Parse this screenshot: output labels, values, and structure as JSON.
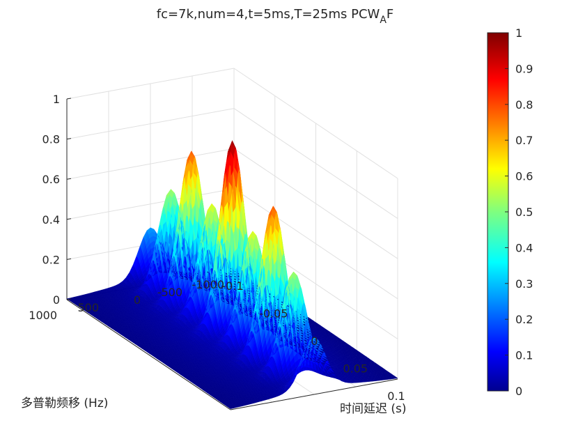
{
  "chart_data": {
    "type": "surface3d",
    "title": {
      "main": "fc=7k,num=4,t=5ms,T=25ms PCW",
      "subscript": "A",
      "suffix": "F"
    },
    "xlabel": "时间延迟 (s)",
    "ylabel": "多普勒频移 (Hz)",
    "zlabel": "",
    "x_ticks": [
      "-0.1",
      "-0.05",
      "0",
      "0.05",
      "0.1"
    ],
    "x_tick_values": [
      -0.1,
      -0.05,
      0,
      0.05,
      0.1
    ],
    "y_ticks": [
      "-1000",
      "-500",
      "0",
      "500",
      "1000"
    ],
    "y_tick_values": [
      -1000,
      -500,
      0,
      500,
      1000
    ],
    "z_ticks": [
      "0",
      "0.2",
      "0.4",
      "0.6",
      "0.8",
      "1"
    ],
    "z_tick_values": [
      0,
      0.2,
      0.4,
      0.6,
      0.8,
      1
    ],
    "xlim": [
      -0.1,
      0.1
    ],
    "ylim": [
      -1000,
      1000
    ],
    "zlim": [
      0,
      1
    ],
    "grid": true,
    "colormap": "jet",
    "colorbar": {
      "ticks": [
        "0",
        "0.1",
        "0.2",
        "0.3",
        "0.4",
        "0.5",
        "0.6",
        "0.7",
        "0.8",
        "0.9",
        "1"
      ],
      "tick_values": [
        0,
        0.1,
        0.2,
        0.3,
        0.4,
        0.5,
        0.6,
        0.7,
        0.8,
        0.9,
        1
      ],
      "placement": "right"
    },
    "peaks": [
      {
        "delay": -0.1,
        "doppler": 0,
        "value": 0.25
      },
      {
        "delay": -0.075,
        "doppler": 0,
        "value": 0.5
      },
      {
        "delay": -0.05,
        "doppler": 0,
        "value": 0.75
      },
      {
        "delay": -0.025,
        "doppler": 0,
        "value": 0.55
      },
      {
        "delay": 0,
        "doppler": 0,
        "value": 0.93
      },
      {
        "delay": 0.025,
        "doppler": 0,
        "value": 0.55
      },
      {
        "delay": 0.05,
        "doppler": 0,
        "value": 0.75
      },
      {
        "delay": 0.075,
        "doppler": 0,
        "value": 0.5
      },
      {
        "delay": 0.1,
        "doppler": 0,
        "value": 0.25
      }
    ]
  }
}
